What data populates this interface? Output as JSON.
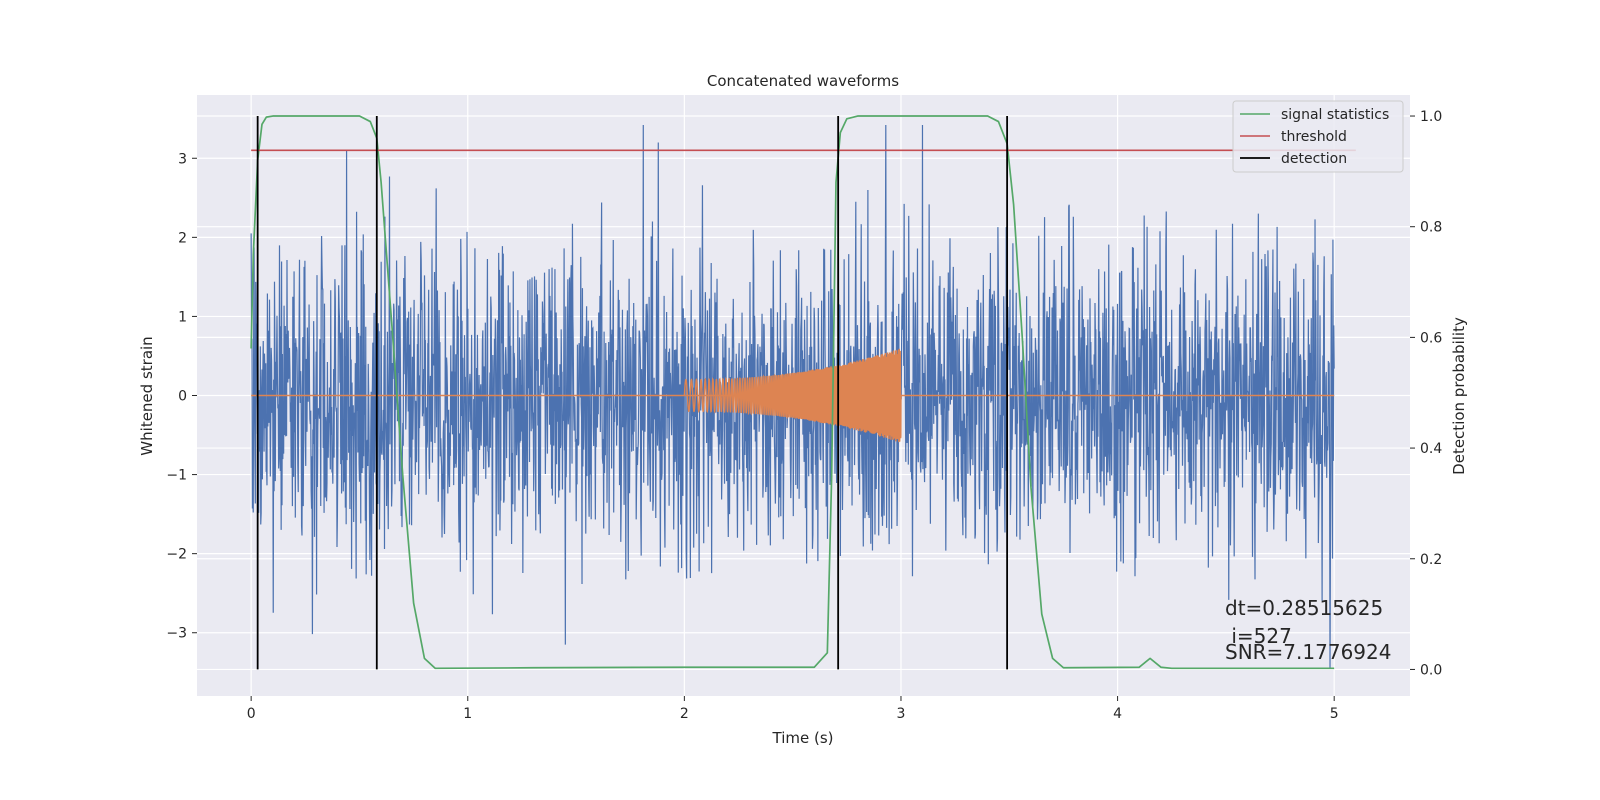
{
  "chart_data": {
    "type": "line",
    "title": "Concatenated waveforms",
    "xlabel": "Time (s)",
    "ylabel_left": "Whitened strain",
    "ylabel_right": "Detection probability",
    "xlim": [
      -0.25,
      5.35
    ],
    "ylim_left": [
      -3.8,
      3.8
    ],
    "ylim_right": [
      -0.048,
      1.038
    ],
    "x_ticks": [
      0,
      1,
      2,
      3,
      4,
      5
    ],
    "y_left_ticks": [
      -3,
      -2,
      -1,
      0,
      1,
      2,
      3
    ],
    "y_right_ticks": [
      0.0,
      0.2,
      0.4,
      0.6,
      0.8,
      1.0
    ],
    "y_left_tick_labels": [
      "−3",
      "−2",
      "−1",
      "0",
      "1",
      "2",
      "3"
    ],
    "y_right_tick_labels": [
      "0.0",
      "0.2",
      "0.4",
      "0.6",
      "0.8",
      "1.0"
    ],
    "grid": true,
    "legend_position": "top-right",
    "legend": [
      "signal statistics",
      "threshold",
      "detection"
    ],
    "colors": {
      "strain": "#4c72b0",
      "injection": "#dd8452",
      "signal_statistics": "#55a868",
      "threshold": "#c44e52",
      "detection": "#000000",
      "axes_bg": "#eaeaf2",
      "grid": "#ffffff"
    },
    "strain": {
      "x_range": [
        0,
        5
      ],
      "typical_amplitude": 1.5,
      "peak_points": [
        {
          "x": 0.0,
          "y": 2.05
        },
        {
          "x": 0.44,
          "y": 3.1
        },
        {
          "x": 1.81,
          "y": 3.42
        },
        {
          "x": 1.88,
          "y": 3.2
        },
        {
          "x": 2.93,
          "y": 3.42
        },
        {
          "x": 3.1,
          "y": 3.42
        },
        {
          "x": 1.45,
          "y": -3.15
        },
        {
          "x": 4.98,
          "y": -3.45
        }
      ]
    },
    "injection": {
      "x": [
        2.0,
        3.0
      ],
      "amplitude_start": 0.2,
      "amplitude_end": 0.6
    },
    "signal_statistics": {
      "x": [
        0.0,
        0.01,
        0.03,
        0.05,
        0.07,
        0.1,
        0.5,
        0.55,
        0.58,
        0.6,
        0.65,
        0.7,
        0.75,
        0.8,
        0.85,
        1.3,
        2.0,
        2.6,
        2.66,
        2.68,
        2.7,
        2.72,
        2.75,
        2.8,
        3.4,
        3.45,
        3.49,
        3.52,
        3.56,
        3.6,
        3.65,
        3.7,
        3.75,
        4.1,
        4.15,
        4.2,
        4.25,
        5.0
      ],
      "y": [
        0.58,
        0.75,
        0.92,
        0.985,
        0.998,
        1.0,
        1.0,
        0.99,
        0.96,
        0.88,
        0.62,
        0.35,
        0.12,
        0.02,
        0.002,
        0.003,
        0.004,
        0.004,
        0.03,
        0.35,
        0.88,
        0.97,
        0.995,
        1.0,
        1.0,
        0.99,
        0.95,
        0.84,
        0.6,
        0.33,
        0.1,
        0.02,
        0.003,
        0.004,
        0.02,
        0.004,
        0.002,
        0.002
      ]
    },
    "threshold": {
      "x": [
        0.0,
        5.1
      ],
      "value": 3.1
    },
    "detections": [
      0.03,
      0.58,
      2.71,
      3.49
    ],
    "annotations": [
      "dt=0.28515625",
      " i=527",
      "SNR=7.1776924"
    ]
  }
}
